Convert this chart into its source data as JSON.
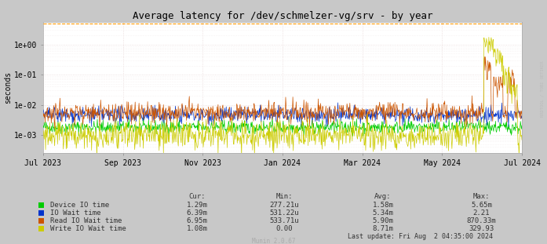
{
  "title": "Average latency for /dev/schmelzer-vg/srv - by year",
  "ylabel": "seconds",
  "outer_bg": "#c8c8c8",
  "plot_bg_color": "#ffffff",
  "title_fontsize": 9,
  "axis_fontsize": 7,
  "tick_fontsize": 7,
  "watermark": "Munin 2.0.67",
  "last_update": "Last update: Fri Aug  2 04:35:00 2024",
  "x_tick_labels": [
    "Jul 2023",
    "Sep 2023",
    "Nov 2023",
    "Jan 2024",
    "Mar 2024",
    "May 2024",
    "Jul 2024"
  ],
  "x_tick_positions": [
    0.0,
    0.1667,
    0.3333,
    0.5,
    0.6667,
    0.8333,
    1.0
  ],
  "yticks": [
    0.001,
    0.01,
    0.1,
    1.0
  ],
  "ytick_labels": [
    "1e-03",
    "1e-02",
    "1e-01",
    "1e+00"
  ],
  "series": {
    "device_io": {
      "label": "Device IO time",
      "color": "#00cc00",
      "lw": 0.5
    },
    "io_wait": {
      "label": "IO Wait time",
      "color": "#0033cc",
      "lw": 0.5
    },
    "read_io": {
      "label": "Read IO Wait time",
      "color": "#cc5500",
      "lw": 0.5
    },
    "write_io": {
      "label": "Write IO Wait time",
      "color": "#cccc00",
      "lw": 0.5
    }
  },
  "legend_rows": [
    {
      "label": "Device IO time",
      "color": "#00cc00",
      "cur": "1.29m",
      "min": "277.21u",
      "avg": "1.58m",
      "max": "5.65m"
    },
    {
      "label": "IO Wait time",
      "color": "#0033cc",
      "cur": "6.39m",
      "min": "531.22u",
      "avg": "5.34m",
      "max": "2.21"
    },
    {
      "label": "Read IO Wait time",
      "color": "#cc5500",
      "cur": "6.95m",
      "min": "533.71u",
      "avg": "5.90m",
      "max": "870.33m"
    },
    {
      "label": "Write IO Wait time",
      "color": "#cccc00",
      "cur": "1.08m",
      "min": "0.00",
      "avg": "8.71m",
      "max": "329.93"
    }
  ],
  "hrule_color": "#ff9900",
  "hrule_value": 5.0,
  "grid_major_color": "#e8d8d8",
  "grid_minor_color": "#f0e8e8",
  "spine_color": "#aaaaaa",
  "rrd_text": "RRDTOOL / TOBI OETIKER"
}
